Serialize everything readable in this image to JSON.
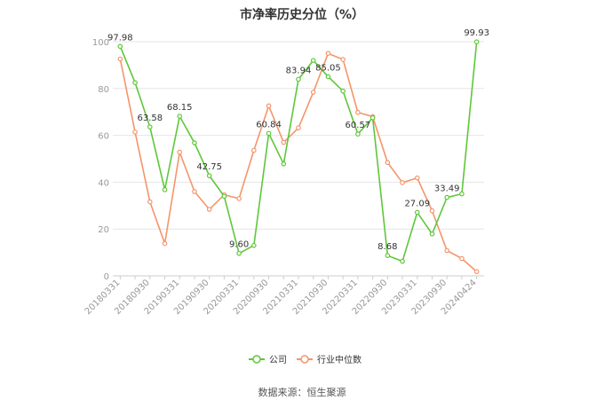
{
  "chart_data": {
    "type": "line",
    "title": "市净率历史分位（%）",
    "xlabel": "",
    "ylabel": "",
    "ylim": [
      0,
      100
    ],
    "yticks": [
      0,
      20,
      40,
      60,
      80,
      100
    ],
    "x_tick_labels": [
      "20180331",
      "20180930",
      "20190331",
      "20190930",
      "20200331",
      "20200930",
      "20210331",
      "20210930",
      "20220331",
      "20220930",
      "20230331",
      "20230930",
      "20240424"
    ],
    "x_tick_indices": [
      0,
      2,
      4,
      6,
      8,
      10,
      12,
      14,
      16,
      18,
      20,
      22,
      24
    ],
    "x": [
      "20180331",
      "20180630",
      "20180930",
      "20181231",
      "20190331",
      "20190630",
      "20190930",
      "20191231",
      "20200331",
      "20200630",
      "20200930",
      "20201231",
      "20210331",
      "20210630",
      "20210930",
      "20211231",
      "20220331",
      "20220630",
      "20220930",
      "20221231",
      "20230331",
      "20230630",
      "20230930",
      "20231231",
      "20240424"
    ],
    "series": [
      {
        "name": "公司",
        "color": "#5ec73a",
        "values": [
          97.98,
          82.5,
          63.58,
          36.8,
          68.15,
          56.8,
          42.75,
          34.0,
          9.6,
          13.0,
          60.84,
          47.8,
          83.94,
          92.0,
          85.05,
          78.9,
          60.57,
          67.5,
          8.68,
          6.2,
          27.09,
          17.9,
          33.49,
          35.0,
          99.93
        ],
        "labels": {
          "0": "97.98",
          "2": "63.58",
          "4": "68.15",
          "6": "42.75",
          "8": "9.60",
          "10": "60.84",
          "12": "83.94",
          "14": "85.05",
          "16": "60.57",
          "18": "8.68",
          "20": "27.09",
          "22": "33.49",
          "24": "99.93"
        }
      },
      {
        "name": "行业中位数",
        "color": "#f4956b",
        "values": [
          92.6,
          61.4,
          31.6,
          13.8,
          52.8,
          36.0,
          28.4,
          34.6,
          33.0,
          53.6,
          72.6,
          57.0,
          63.2,
          78.4,
          95.0,
          92.4,
          69.8,
          68.0,
          48.4,
          39.8,
          41.8,
          27.8,
          10.8,
          7.4,
          1.8
        ]
      }
    ],
    "legend_position": "bottom",
    "grid": true
  },
  "footer": {
    "source": "数据来源：恒生聚源"
  }
}
